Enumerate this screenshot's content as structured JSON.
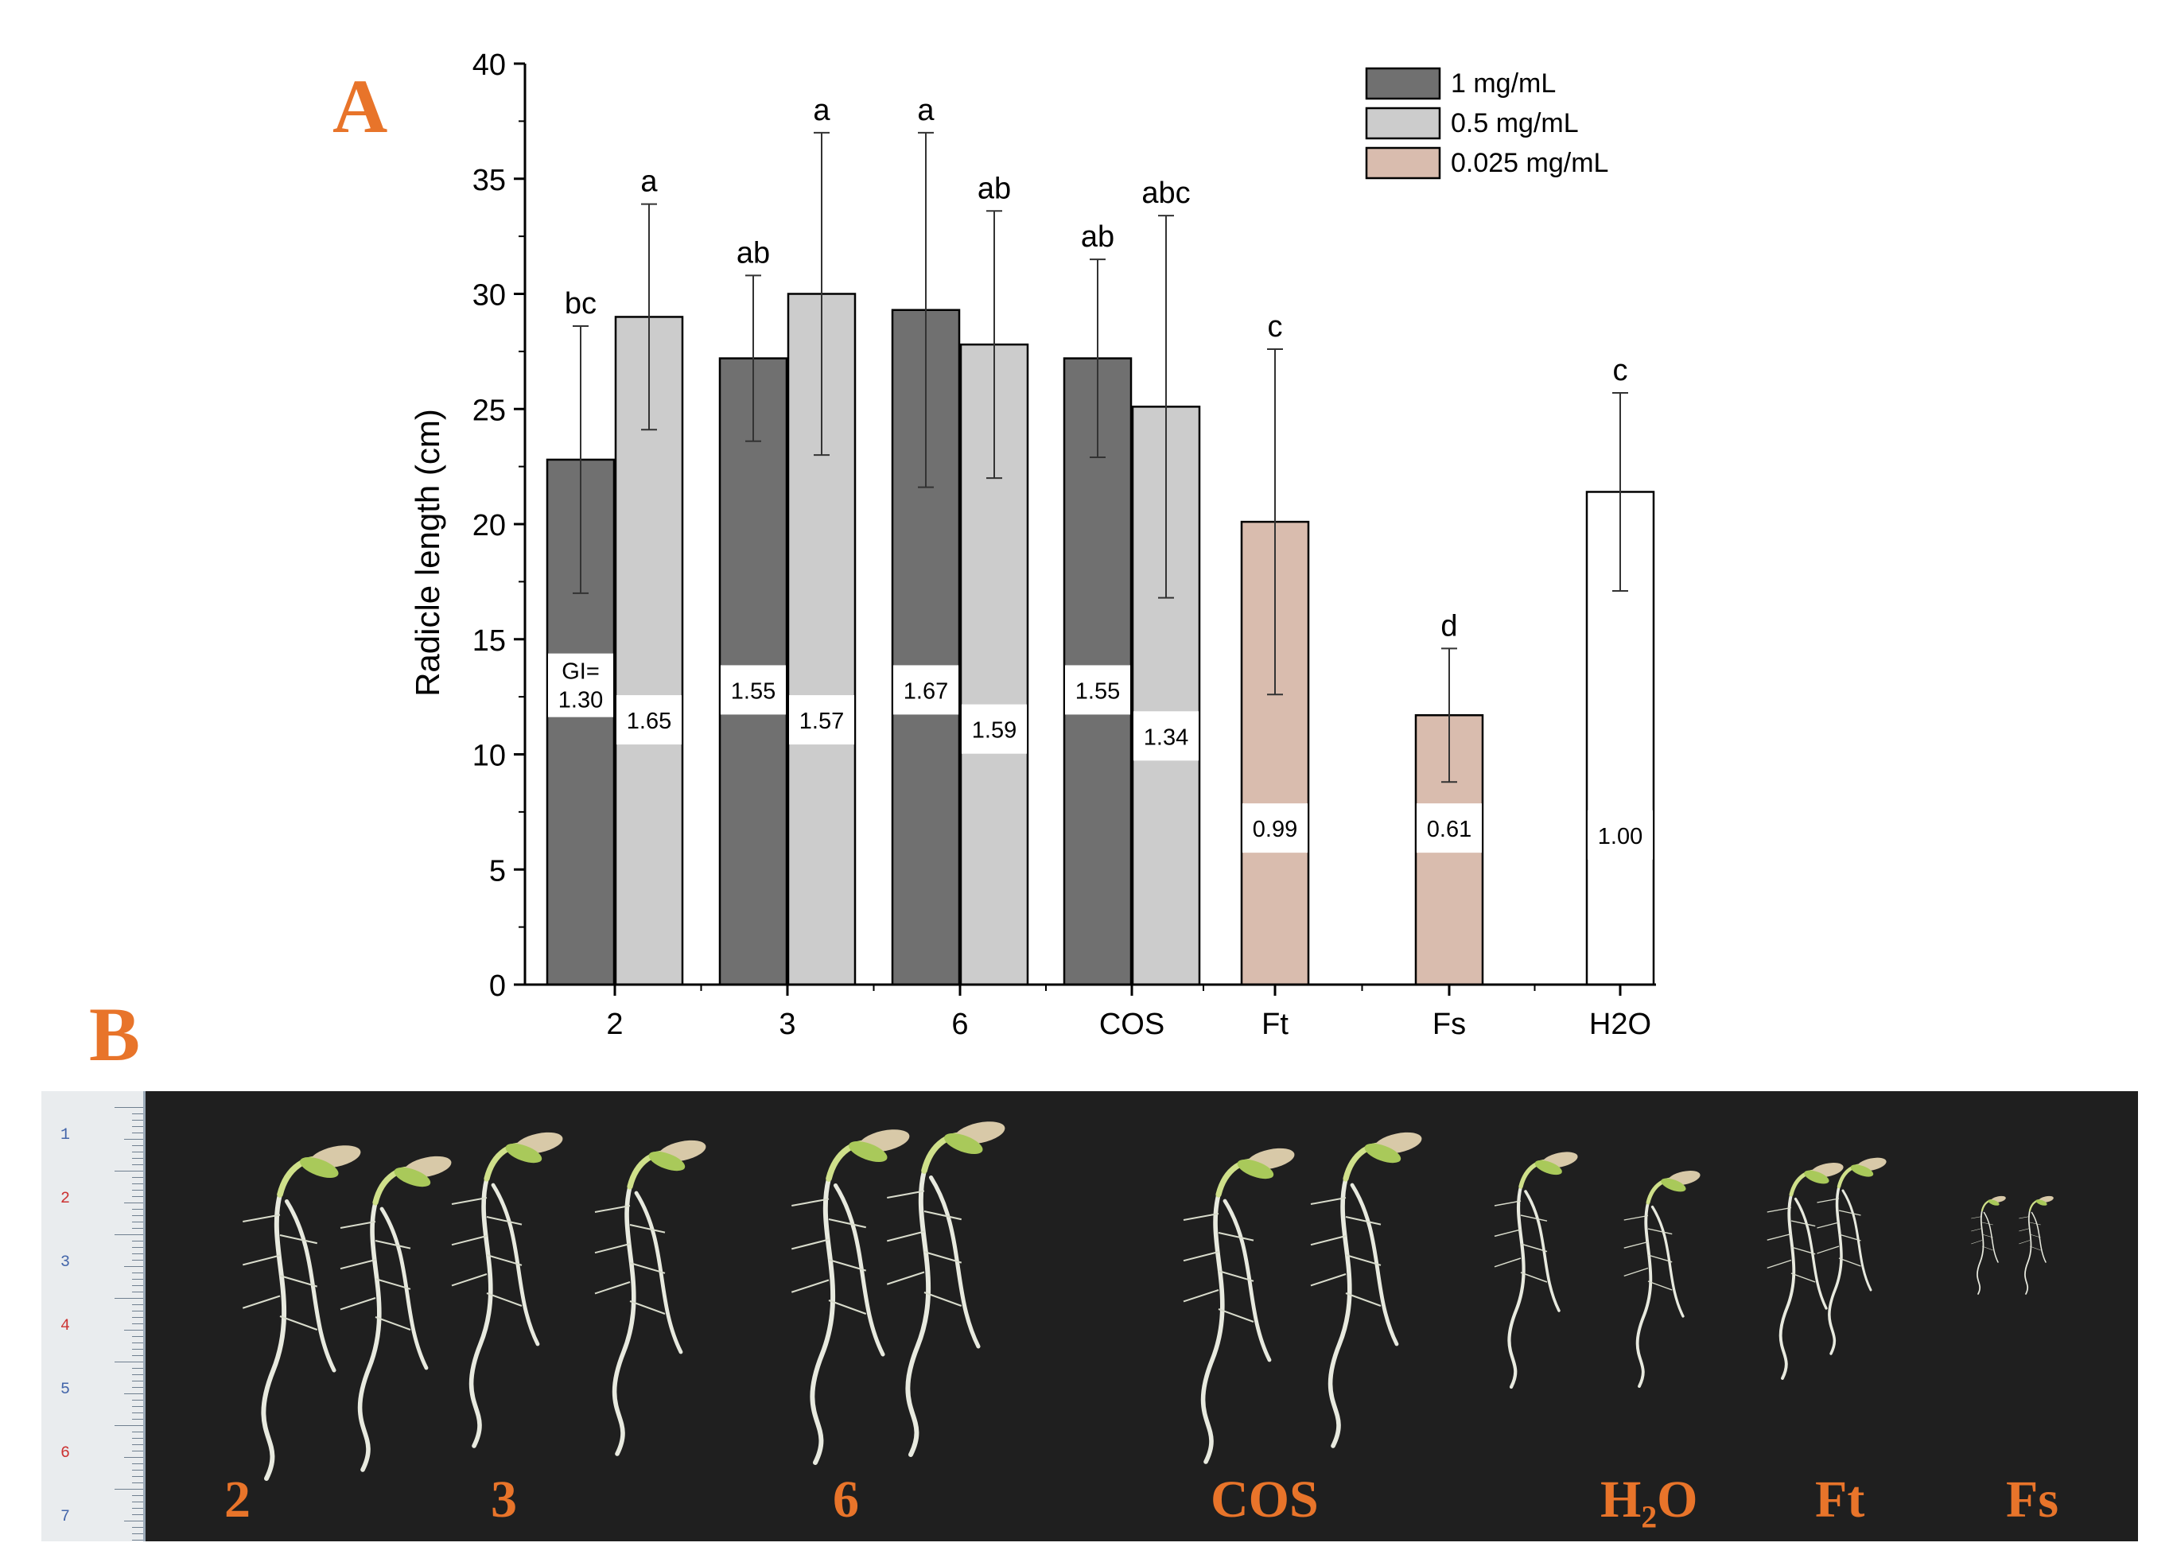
{
  "panel_a_label": "A",
  "panel_b_label": "B",
  "colors": {
    "panel_labels": "#e8742a",
    "series_1": "#707070",
    "series_2": "#cccccc",
    "series_3": "#d9bcae",
    "control": "#ffffff",
    "photo_background": "#1f1f1f"
  },
  "chart_data": {
    "type": "bar",
    "ylabel": "Radicle length (cm)",
    "xlabel": "",
    "ylim": [
      0,
      40
    ],
    "yticks": [
      "0",
      "5",
      "10",
      "15",
      "20",
      "25",
      "30",
      "35",
      "40"
    ],
    "categories": [
      "2",
      "3",
      "6",
      "COS",
      "Ft",
      "Fs",
      "H2O"
    ],
    "legend": {
      "placement": "top-right",
      "items": [
        "1 mg/mL",
        "0.5 mg/mL",
        "0.025 mg/mL"
      ]
    },
    "series": [
      {
        "name": "1 mg/mL",
        "values": [
          22.8,
          27.2,
          29.3,
          27.2,
          null,
          null,
          null
        ],
        "errors": [
          5.8,
          3.6,
          7.7,
          4.3,
          null,
          null,
          null
        ],
        "letters": [
          "bc",
          "ab",
          "a",
          "ab",
          null,
          null,
          null
        ],
        "gi": [
          "GI=\n1.30",
          "1.55",
          "1.67",
          "1.55",
          null,
          null,
          null
        ],
        "gi_y": [
          13.0,
          12.8,
          12.8,
          12.8,
          null,
          null,
          null
        ]
      },
      {
        "name": "0.5 mg/mL",
        "values": [
          29.0,
          30.0,
          27.8,
          25.1,
          null,
          null,
          null
        ],
        "errors": [
          4.9,
          7.0,
          5.8,
          8.3,
          null,
          null,
          null
        ],
        "letters": [
          "a",
          "a",
          "ab",
          "abc",
          null,
          null,
          null
        ],
        "gi": [
          "1.65",
          "1.57",
          "1.59",
          "1.34",
          null,
          null,
          null
        ],
        "gi_y": [
          11.5,
          11.5,
          11.1,
          10.8,
          null,
          null,
          null
        ]
      },
      {
        "name": "0.025 mg/mL",
        "values": [
          null,
          null,
          null,
          null,
          20.1,
          11.7,
          null
        ],
        "errors": [
          null,
          null,
          null,
          null,
          7.5,
          2.9,
          null
        ],
        "letters": [
          null,
          null,
          null,
          null,
          "c",
          "d",
          null
        ],
        "gi": [
          null,
          null,
          null,
          null,
          "0.99",
          "0.61",
          null
        ],
        "gi_y": [
          null,
          null,
          null,
          null,
          6.8,
          6.8,
          null
        ]
      },
      {
        "name": "",
        "values": [
          null,
          null,
          null,
          null,
          null,
          null,
          21.4
        ],
        "errors": [
          null,
          null,
          null,
          null,
          null,
          null,
          4.3
        ],
        "letters": [
          null,
          null,
          null,
          null,
          null,
          null,
          "c"
        ],
        "gi": [
          null,
          null,
          null,
          null,
          null,
          null,
          "1.00"
        ],
        "gi_y": [
          null,
          null,
          null,
          null,
          null,
          null,
          6.5
        ]
      }
    ]
  },
  "photo": {
    "ruler_numbers": [
      "1",
      "2",
      "3",
      "4",
      "5",
      "6",
      "7"
    ],
    "seedling_labels": [
      "2",
      "3",
      "6",
      "COS",
      "H₂O",
      "Ft",
      "Fs"
    ]
  }
}
